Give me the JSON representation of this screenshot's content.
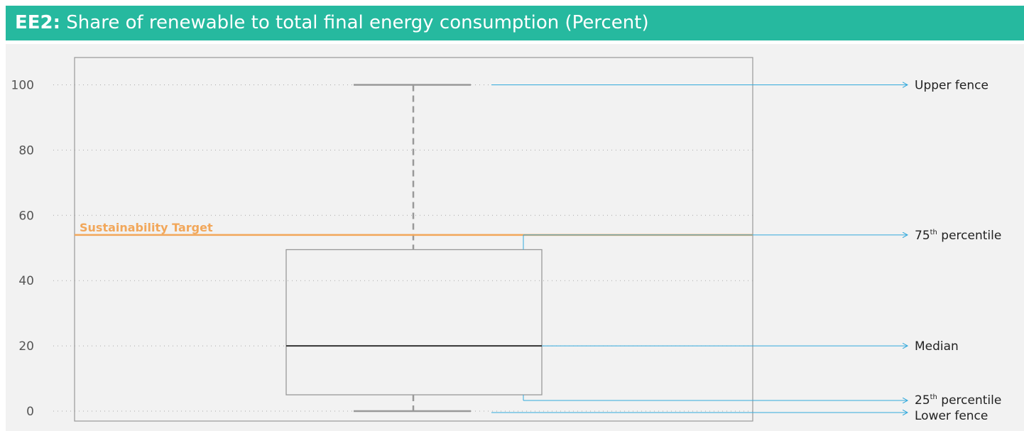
{
  "title": {
    "code": "EE2:",
    "text": "Share of renewable to total final energy consumption (Percent)"
  },
  "chart_data": {
    "type": "box",
    "title": "EE2: Share of renewable to total final energy consumption (Percent)",
    "ylim": [
      -3,
      108
    ],
    "y_ticks": [
      0,
      20,
      40,
      60,
      80,
      100
    ],
    "grid": "horizontal-dotted",
    "box": {
      "lower_fence": 0,
      "q1": 5,
      "median": 20,
      "q3": 49.5,
      "upper_fence": 100
    },
    "target": {
      "label": "Sustainability Target",
      "value": 54
    },
    "annotations": [
      {
        "key": "upper",
        "label": "Upper fence",
        "sup": "",
        "rest": ""
      },
      {
        "key": "q3",
        "label": "75",
        "sup": "th",
        "rest": " percentile"
      },
      {
        "key": "median",
        "label": "Median",
        "sup": "",
        "rest": ""
      },
      {
        "key": "q1",
        "label": "25",
        "sup": "th",
        "rest": " percentile"
      },
      {
        "key": "lower",
        "label": "Lower fence",
        "sup": "",
        "rest": ""
      }
    ],
    "colors": {
      "annotation": "#33a9dc",
      "target": "#f2a75a",
      "box_stroke": "#999999",
      "median": "#333333",
      "whisker": "#999999",
      "grid": "#aaaaaa"
    }
  }
}
